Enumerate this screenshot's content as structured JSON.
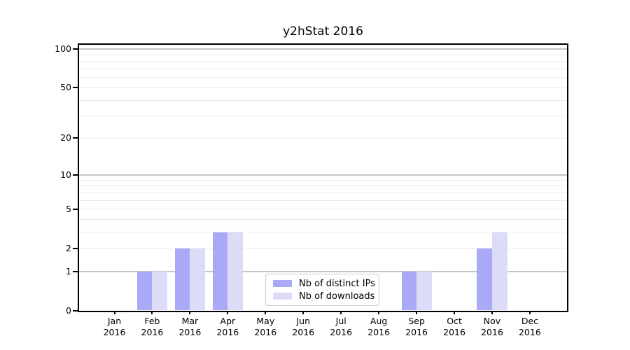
{
  "chart_data": {
    "type": "bar",
    "title": "y2hStat 2016",
    "categories": [
      "Jan",
      "Feb",
      "Mar",
      "Apr",
      "May",
      "Jun",
      "Jul",
      "Aug",
      "Sep",
      "Oct",
      "Nov",
      "Dec"
    ],
    "year_label": "2016",
    "series": [
      {
        "name": "Nb of distinct IPs",
        "color": "#a9a9f8",
        "values": [
          0,
          1,
          2,
          3,
          0,
          0,
          0,
          0,
          1,
          0,
          2,
          0
        ]
      },
      {
        "name": "Nb of downloads",
        "color": "#dcdcf8",
        "values": [
          0,
          1,
          2,
          3,
          0,
          0,
          0,
          0,
          1,
          0,
          3,
          0
        ]
      }
    ],
    "ylabel": "",
    "xlabel": "",
    "yscale": "log1p",
    "ylim": [
      0,
      108
    ],
    "ytick_values": [
      0,
      1,
      2,
      5,
      10,
      20,
      50,
      100
    ],
    "ytick_labels": [
      "0",
      "1",
      "2",
      "5",
      "10",
      "20",
      "50",
      "100"
    ],
    "major_gridline_values": [
      1,
      10,
      100
    ],
    "minor_gridline_values": [
      2,
      3,
      4,
      5,
      6,
      7,
      8,
      9,
      20,
      30,
      40,
      50,
      60,
      70,
      80,
      90
    ],
    "grid": true,
    "legend_position": "lower-center",
    "colors": {
      "major_grid": "#c6c6c6",
      "minor_grid": "#ebebeb",
      "axis": "#000000",
      "legend_border": "#cccccc"
    }
  }
}
